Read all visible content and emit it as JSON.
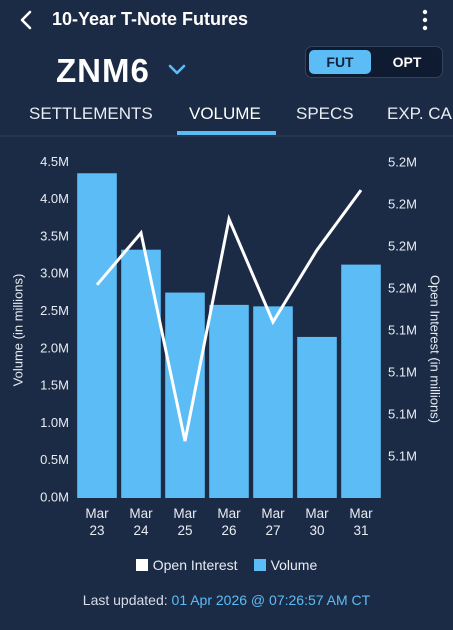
{
  "header": {
    "title": "10-Year T-Note Futures"
  },
  "contract": {
    "symbol": "ZNM6",
    "toggle": [
      "FUT",
      "OPT"
    ]
  },
  "tabs": [
    "SETTLEMENTS",
    "VOLUME",
    "SPECS",
    "EXP. CA"
  ],
  "chart_data": {
    "type": "combo",
    "y_label": "Volume (in millions)",
    "y2_label": "Open Interest (in millions)",
    "categories": [
      "Mar 23",
      "Mar 24",
      "Mar 25",
      "Mar 26",
      "Mar 27",
      "Mar 30",
      "Mar 31"
    ],
    "series": [
      {
        "name": "Open Interest",
        "type": "line",
        "axis": "y2",
        "color": "#ffffff",
        "values": [
          5.162,
          5.1867,
          5.0876,
          5.1933,
          5.1443,
          5.1786,
          5.2071
        ]
      },
      {
        "name": "Volume",
        "type": "bar",
        "color": "#5cbdf6",
        "values": [
          4.355,
          3.33,
          2.755,
          2.59,
          2.57,
          2.16,
          3.13
        ]
      }
    ],
    "ylim": [
      0,
      4.6
    ],
    "yticks": [
      {
        "value": 0,
        "label": "0.0M"
      },
      {
        "value": 0.5,
        "label": "0.5M"
      },
      {
        "value": 1,
        "label": "1.0M"
      },
      {
        "value": 1.5,
        "label": "1.5M"
      },
      {
        "value": 2,
        "label": "2.0M"
      },
      {
        "value": 2.5,
        "label": "2.5M"
      },
      {
        "value": 3,
        "label": "3.0M"
      },
      {
        "value": 3.5,
        "label": "3.5M"
      },
      {
        "value": 4,
        "label": "4.0M"
      },
      {
        "value": 4.5,
        "label": "4.5M"
      }
    ],
    "y2lim": [
      5.0605,
      5.2238
    ],
    "y2ticks": [
      {
        "value": 5.08,
        "label": "5.1M"
      },
      {
        "value": 5.1,
        "label": "5.1M"
      },
      {
        "value": 5.12,
        "label": "5.1M"
      },
      {
        "value": 5.14,
        "label": "5.1M"
      },
      {
        "value": 5.16,
        "label": "5.2M"
      },
      {
        "value": 5.18,
        "label": "5.2M"
      },
      {
        "value": 5.2,
        "label": "5.2M"
      },
      {
        "value": 5.22,
        "label": "5.2M"
      }
    ],
    "grid": false,
    "legend": "bottom"
  },
  "footer": {
    "label": "Last updated:",
    "timestamp": "01 Apr 2026 @ 07:26:57 AM CT"
  }
}
